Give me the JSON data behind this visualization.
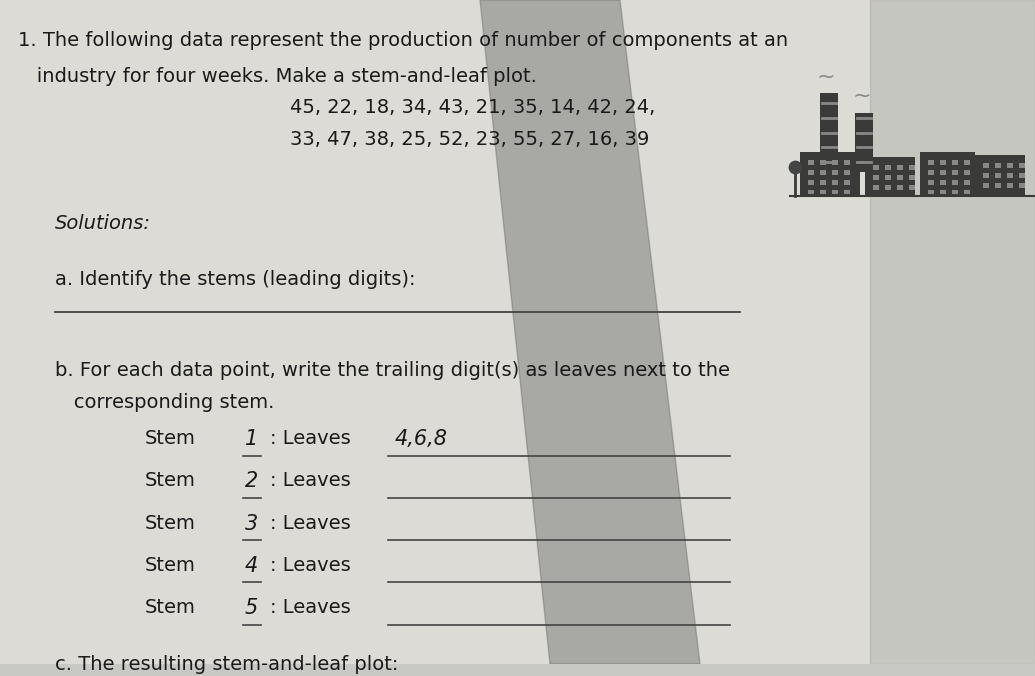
{
  "title_line1": "1. The following data represent the production of number of components at an",
  "title_line2": "   industry for four weeks. Make a stem-and-leaf plot.",
  "data_line1": "45, 22, 18, 34, 43, 21, 35, 14, 42, 24,",
  "data_line2": "33, 47, 38, 25, 52, 23, 55, 27, 16, 39",
  "solutions_label": "Solutions:",
  "part_a": "a. Identify the stems (leading digits):",
  "part_b_intro": "b. For each data point, write the trailing digit(s) as leaves next to the",
  "part_b_intro2": "   corresponding stem.",
  "stems": [
    "1",
    "2",
    "3",
    "4",
    "5"
  ],
  "leaves_filled": [
    "4,6,8",
    "",
    "",
    "",
    ""
  ],
  "part_c": "c. The resulting stem-and-leaf plot:",
  "bg_color": "#c8c8c4",
  "paper_color": "#dcdbd6",
  "text_color": "#1a1a1a",
  "line_color": "#444444",
  "shadow_color": "#8a8a88"
}
